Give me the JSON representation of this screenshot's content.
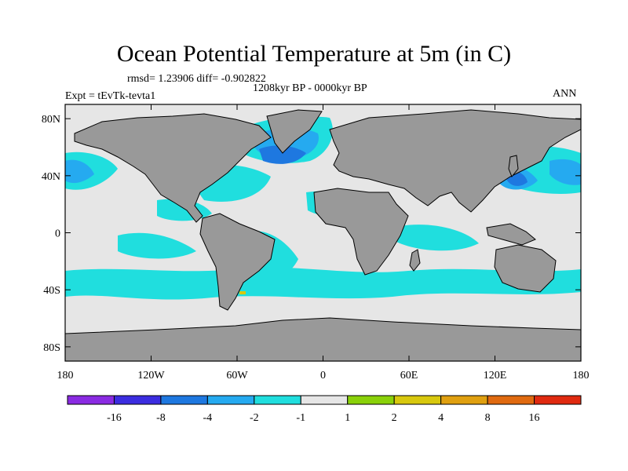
{
  "title": "Ocean Potential Temperature at 5m (in C)",
  "stats": "rmsd= 1.23906 diff= -0.902822",
  "period": "1208kyr BP - 0000kyr BP",
  "experiment": "Expt = tEvTk-tevta1",
  "season": "ANN",
  "map": {
    "projection": "cylindrical equidistant",
    "lon_range": [
      -180,
      180
    ],
    "lat_range": [
      -90,
      90
    ],
    "lon_ticks": [
      {
        "value": -180,
        "label": "180"
      },
      {
        "value": -120,
        "label": "120W"
      },
      {
        "value": -60,
        "label": "60W"
      },
      {
        "value": 0,
        "label": "0"
      },
      {
        "value": 60,
        "label": "60E"
      },
      {
        "value": 120,
        "label": "120E"
      },
      {
        "value": 180,
        "label": "180"
      }
    ],
    "lat_ticks": [
      {
        "value": 80,
        "label": "80N"
      },
      {
        "value": 40,
        "label": "40N"
      },
      {
        "value": 0,
        "label": "0"
      },
      {
        "value": -40,
        "label": "40S"
      },
      {
        "value": -80,
        "label": "80S"
      }
    ],
    "land_color": "#999999",
    "ocean_background": "#e6e6e6"
  },
  "colorbar": {
    "colors": [
      "#8a2be2",
      "#3b2de0",
      "#1e78e0",
      "#25aaf0",
      "#20dede",
      "#e6e6e6",
      "#8ad10a",
      "#d8c80e",
      "#e0a010",
      "#e06a10",
      "#e02a10"
    ],
    "labels": [
      "-16",
      "-8",
      "-4",
      "-2",
      "-1",
      "1",
      "2",
      "4",
      "8",
      "16"
    ]
  }
}
